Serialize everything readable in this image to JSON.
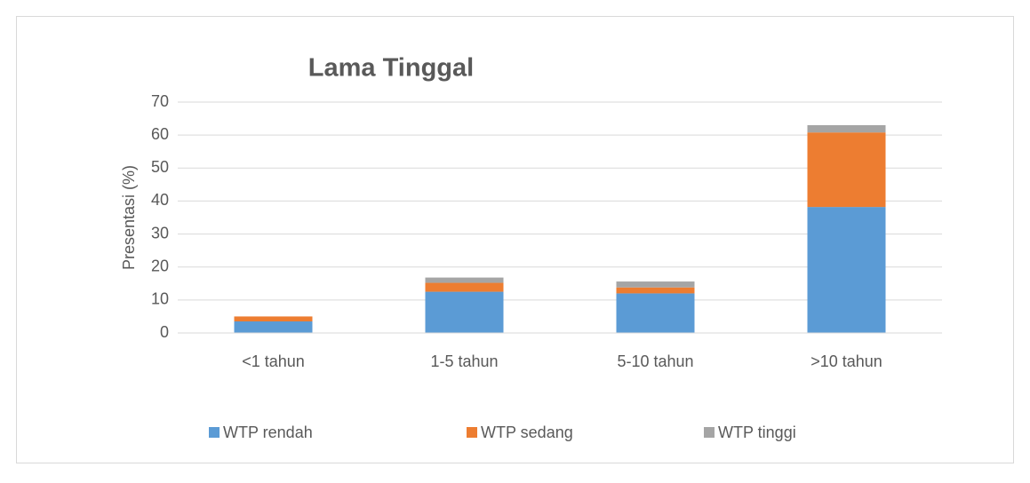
{
  "chart_data": {
    "type": "stacked_bar",
    "title": "Lama Tinggal",
    "y_label": "Presentasi (%)",
    "categories": [
      "<1 tahun",
      "1-5 tahun",
      "5-10 tahun",
      ">10 tahun"
    ],
    "series": [
      {
        "name": "WTP rendah",
        "color": "#5b9bd5",
        "values": [
          3.5,
          12.5,
          12,
          38.2
        ]
      },
      {
        "name": "WTP sedang",
        "color": "#ed7d31",
        "values": [
          1.5,
          2.7,
          1.8,
          22.6
        ]
      },
      {
        "name": "WTP tinggi",
        "color": "#a5a5a5",
        "values": [
          0,
          1.6,
          1.8,
          2.2
        ]
      }
    ],
    "ylim": [
      0,
      70
    ],
    "yticks": [
      0,
      10,
      20,
      30,
      40,
      50,
      60,
      70
    ],
    "grid": true,
    "legend": "bottom"
  }
}
